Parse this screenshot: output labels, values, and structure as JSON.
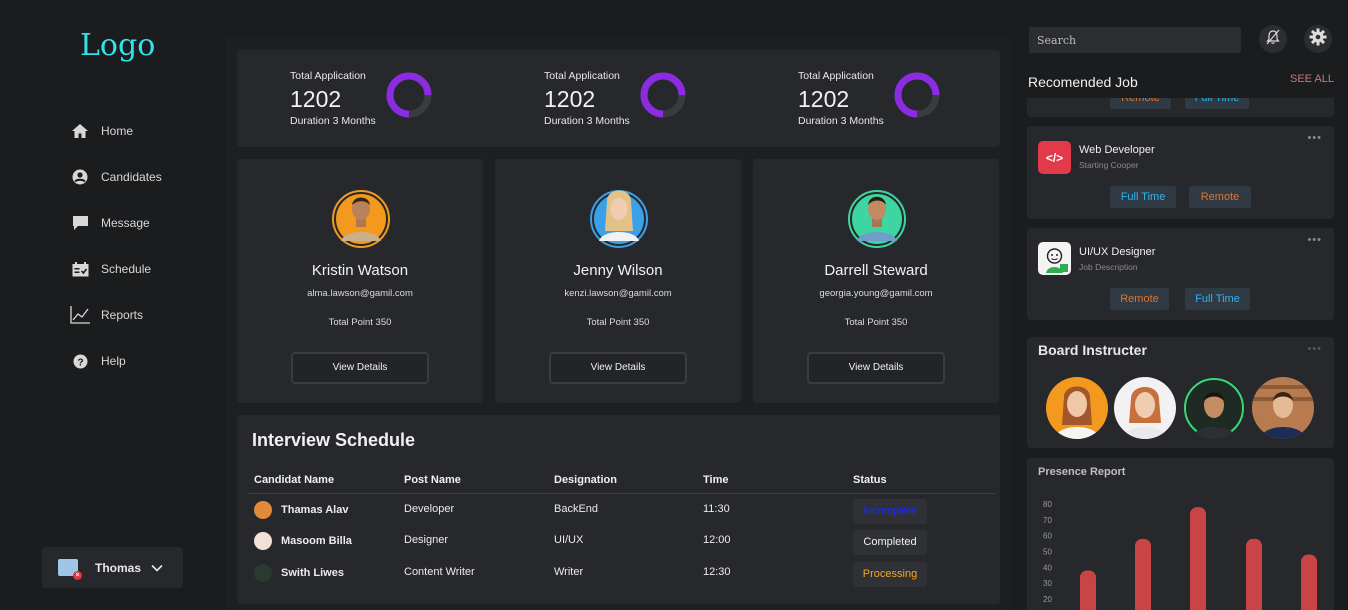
{
  "sidebar": {
    "logo": "Logo",
    "items": [
      {
        "label": "Home",
        "icon": "home-icon"
      },
      {
        "label": "Candidates",
        "icon": "user-circle-icon"
      },
      {
        "label": "Message",
        "icon": "chat-bubble-icon"
      },
      {
        "label": "Schedule",
        "icon": "calendar-icon"
      },
      {
        "label": "Reports",
        "icon": "chart-line-icon"
      },
      {
        "label": "Help",
        "icon": "help-icon"
      }
    ],
    "user": {
      "name": "Thomas"
    }
  },
  "stats": [
    {
      "label": "Total Application",
      "value": "1202",
      "duration": "Duration 3 Months",
      "progress": 0.75
    },
    {
      "label": "Total Application",
      "value": "1202",
      "duration": "Duration 3 Months",
      "progress": 0.75
    },
    {
      "label": "Total Application",
      "value": "1202",
      "duration": "Duration 3 Months",
      "progress": 0.75
    }
  ],
  "candidates": [
    {
      "name": "Kristin Watson",
      "email": "alma.lawson@gamil.com",
      "points": "Total Point 350",
      "button": "View Details",
      "ring_color": "#f39a1e"
    },
    {
      "name": "Jenny Wilson",
      "email": "kenzi.lawson@gamil.com",
      "points": "Total Point 350",
      "button": "View Details",
      "ring_color": "#3aa0e8"
    },
    {
      "name": "Darrell Steward",
      "email": "georgia.young@gamil.com",
      "points": "Total Point 350",
      "button": "View Details",
      "ring_color": "#3ed6a0"
    }
  ],
  "schedule": {
    "title": "Interview Schedule",
    "headers": [
      "Candidat Name",
      "Post Name",
      "Designation",
      "Time",
      "Status"
    ],
    "rows": [
      {
        "name": "Thamas Alav",
        "post": "Developer",
        "designation": "BackEnd",
        "time": "11:30",
        "status": "Incomplete",
        "status_color": "#1a2cff"
      },
      {
        "name": "Masoom Billa",
        "post": "Designer",
        "designation": "UI/UX",
        "time": "12:00",
        "status": "Completed",
        "status_color": "#f0f0f0"
      },
      {
        "name": "Swith Liwes",
        "post": "Content Writer",
        "designation": "Writer",
        "time": "12:30",
        "status": "Processing",
        "status_color": "#f5a623"
      }
    ]
  },
  "right": {
    "search_placeholder": "Search",
    "recommended_title": "Recomended Job",
    "see_all": "SEE ALL",
    "partial_tags": [
      "Remote",
      "Full Time"
    ],
    "jobs": [
      {
        "title": "Web Developer",
        "subtitle": "Starting Cooper",
        "tags": [
          "Full Time",
          "Remote"
        ],
        "logo_glyph": "</>"
      },
      {
        "title": "UI/UX Designer",
        "subtitle": "Job Description",
        "tags": [
          "Remote",
          "Full Time"
        ]
      }
    ],
    "board_title": "Board Instructer",
    "presence_title": "Presence Report"
  },
  "colors": {
    "accent_purple": "#8b2be2",
    "bar_red": "#c94545",
    "full_time_blue": "#2fb4f0",
    "remote_orange": "#e0742d"
  },
  "chart_data": {
    "type": "bar",
    "title": "Presence Report",
    "y_ticks": [
      "80",
      "70",
      "60",
      "50",
      "40",
      "30",
      "20"
    ],
    "ylim": [
      20,
      80
    ],
    "values": [
      38,
      58,
      78,
      58,
      48
    ]
  }
}
